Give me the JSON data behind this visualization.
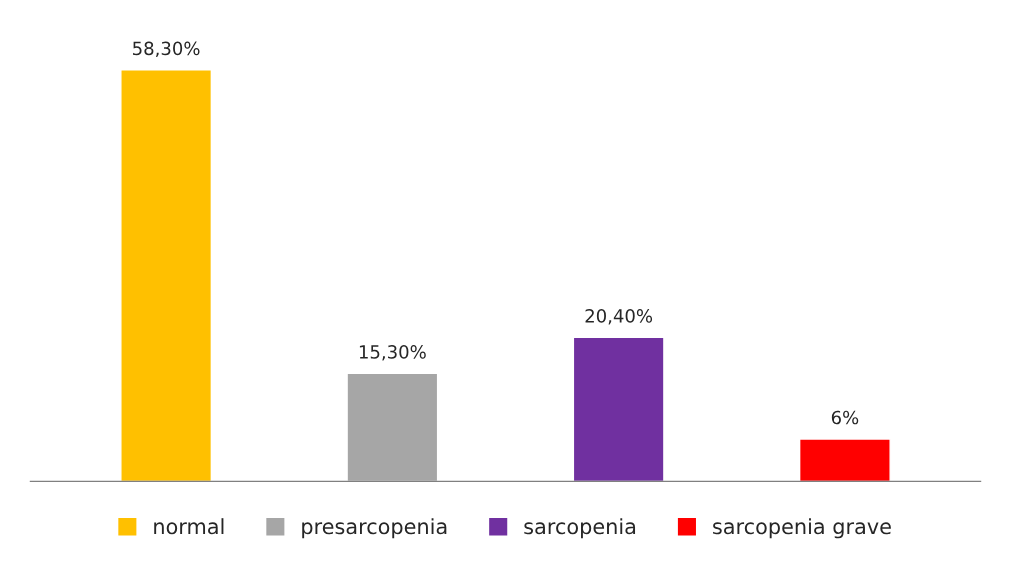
{
  "chart_data": {
    "type": "bar",
    "categories": [
      null,
      null,
      null,
      null
    ],
    "stacked": true,
    "series": [
      {
        "name": "normal",
        "color": "#ffc000",
        "values": [
          58.3,
          null,
          null,
          null
        ],
        "value_labels": [
          "58,30%",
          null,
          null,
          null
        ]
      },
      {
        "name": "presarcopenia",
        "color": "#a6a6a6",
        "values": [
          null,
          15.3,
          null,
          null
        ],
        "value_labels": [
          null,
          "15,30%",
          null,
          null
        ]
      },
      {
        "name": "sarcopenia",
        "color": "#7030a0",
        "values": [
          null,
          null,
          20.4,
          null
        ],
        "value_labels": [
          null,
          null,
          "20,40%",
          null
        ]
      },
      {
        "name": "sarcopenia grave",
        "color": "#ff0000",
        "values": [
          null,
          null,
          null,
          6
        ],
        "value_labels": [
          null,
          null,
          null,
          "6%"
        ]
      }
    ],
    "tick_labels": false,
    "grid": false,
    "legend": "bottom"
  }
}
